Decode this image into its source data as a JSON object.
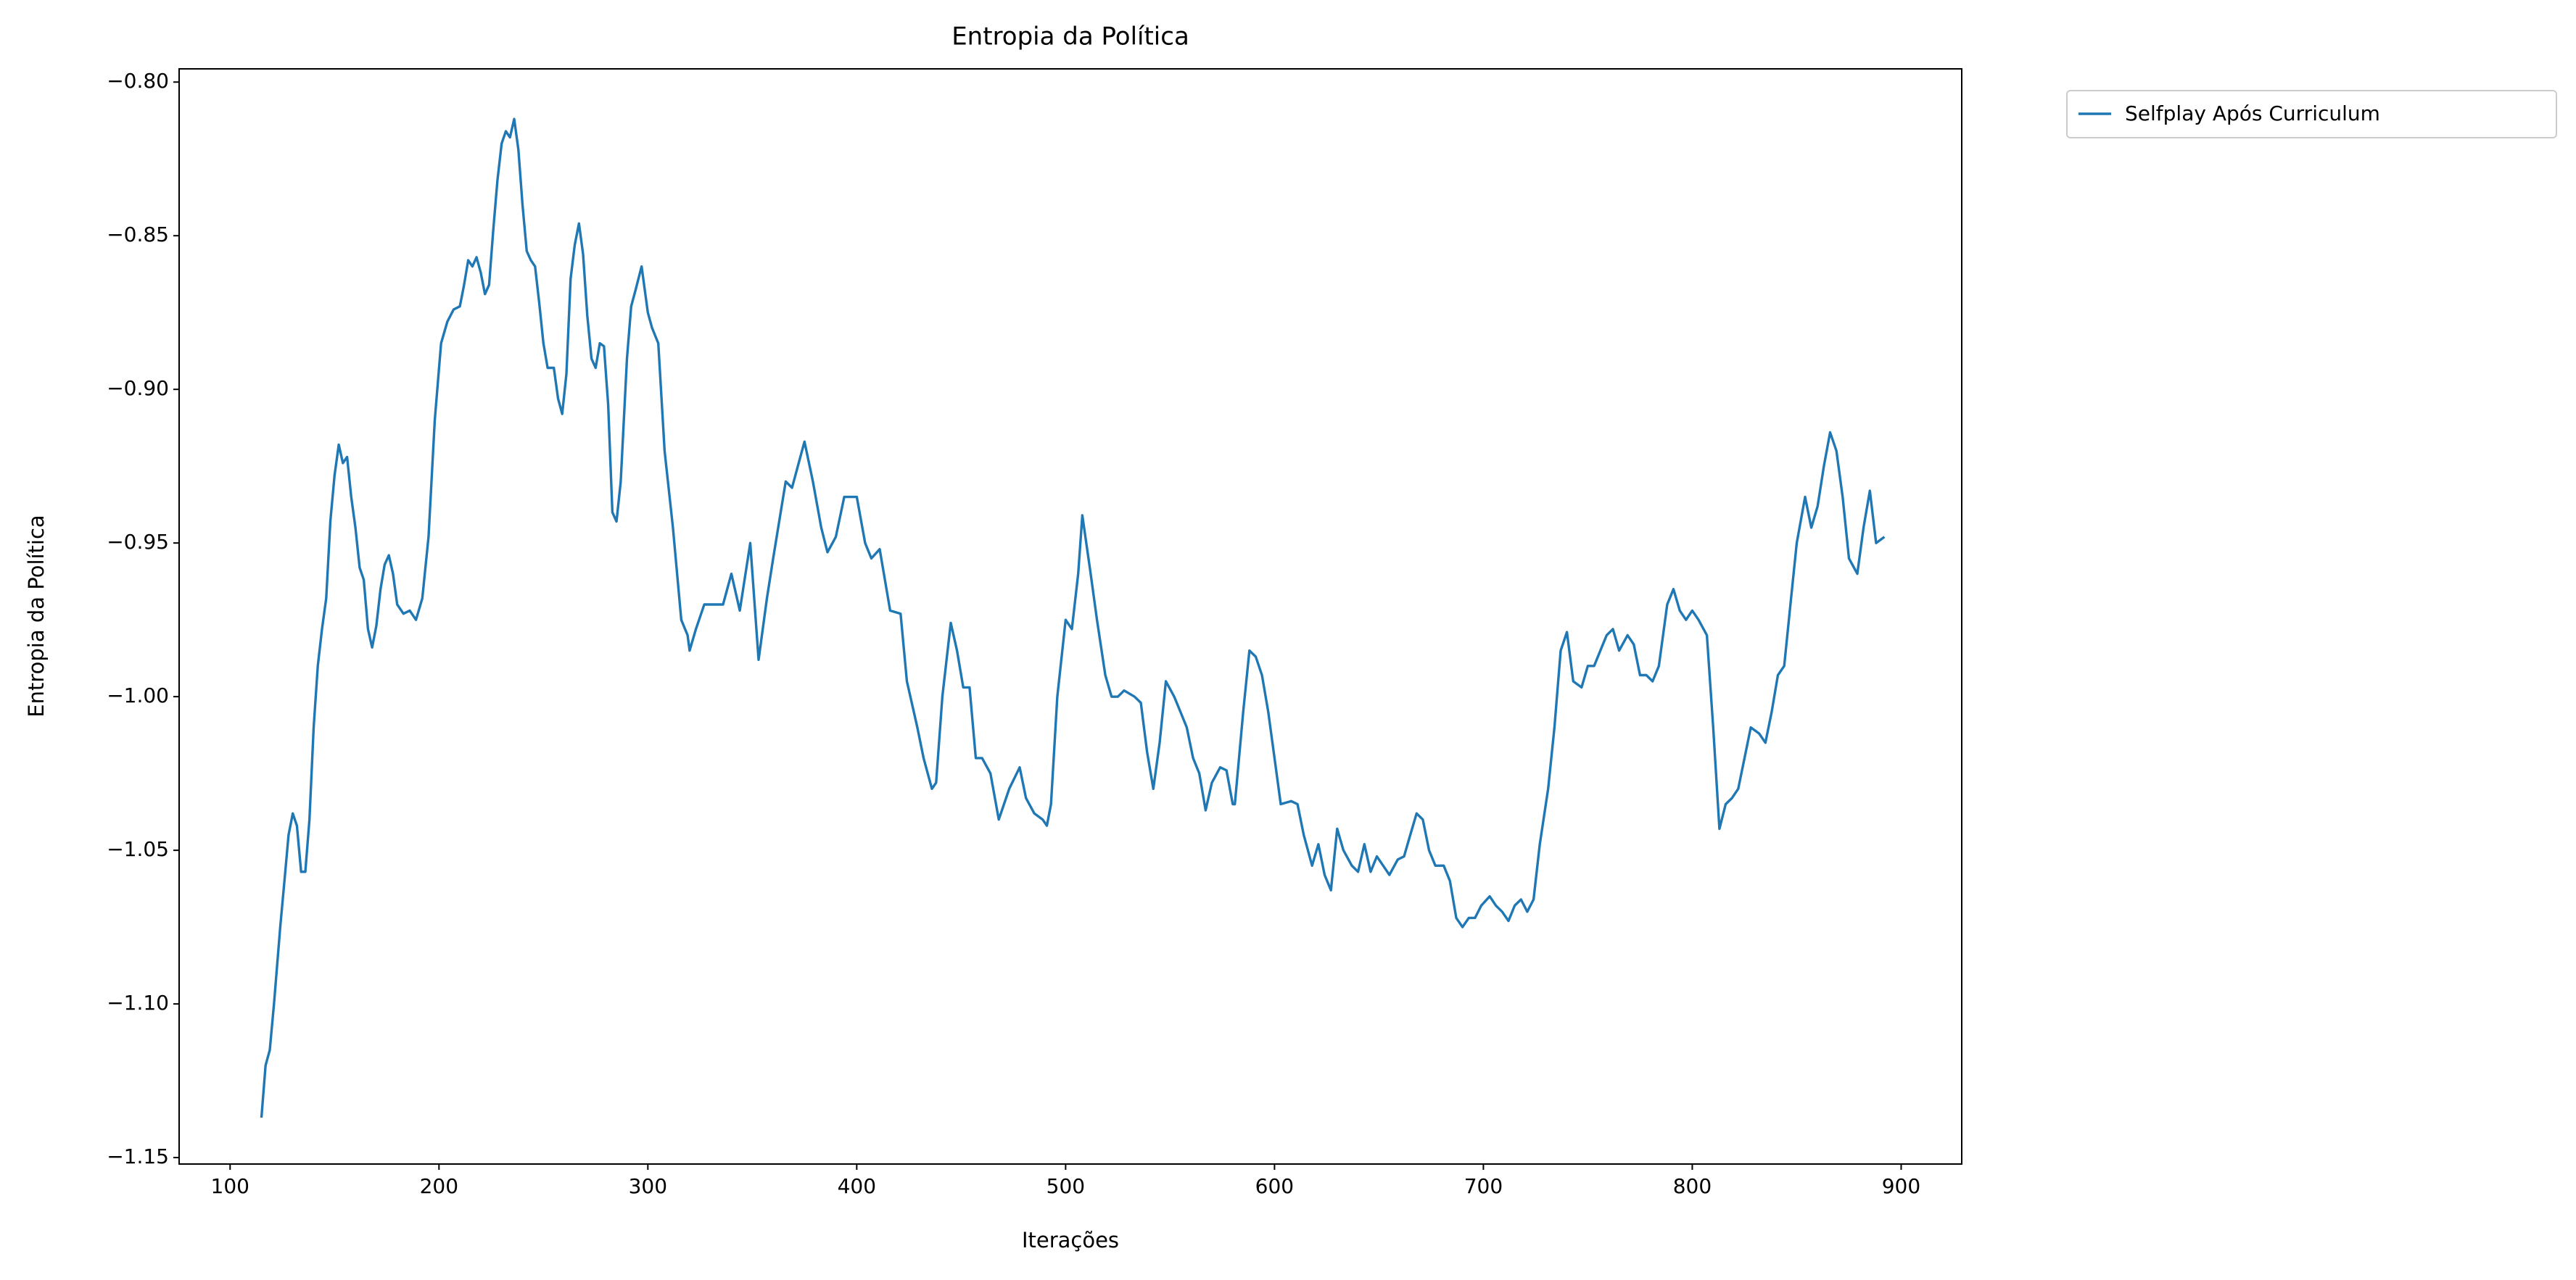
{
  "chart_data": {
    "type": "line",
    "title": "Entropia da Política",
    "x_label": "Iterações",
    "y_label": "Entropia da Política",
    "legend": "upper right outside",
    "xlim": [
      75.6,
      929
    ],
    "ylim": [
      -1.1521,
      -0.7957
    ],
    "xticks": [
      100,
      200,
      300,
      400,
      500,
      600,
      700,
      800,
      900
    ],
    "yticks": [
      {
        "value": -0.8,
        "label": "−0.80"
      },
      {
        "value": -0.85,
        "label": "−0.85"
      },
      {
        "value": -0.9,
        "label": "−0.90"
      },
      {
        "value": -0.95,
        "label": "−0.95"
      },
      {
        "value": -1.0,
        "label": "−1.00"
      },
      {
        "value": -1.05,
        "label": "−1.05"
      },
      {
        "value": -1.1,
        "label": "−1.10"
      },
      {
        "value": -1.15,
        "label": "−1.15"
      }
    ],
    "x": [
      115,
      117,
      119,
      121,
      124,
      126,
      128,
      130,
      132,
      134,
      136,
      138,
      140,
      142,
      144,
      146,
      148,
      150,
      152,
      154,
      156,
      158,
      160,
      162,
      164,
      166,
      168,
      170,
      172,
      174,
      176,
      178,
      180,
      183,
      186,
      189,
      192,
      195,
      198,
      201,
      204,
      207,
      210,
      212,
      214,
      216,
      218,
      220,
      222,
      224,
      226,
      228,
      230,
      232,
      234,
      236,
      238,
      240,
      242,
      244,
      246,
      248,
      250,
      252,
      255,
      257,
      259,
      261,
      263,
      265,
      267,
      269,
      271,
      273,
      275,
      277,
      279,
      281,
      283,
      285,
      287,
      290,
      292,
      294,
      297,
      300,
      302,
      305,
      308,
      312,
      316,
      319,
      320,
      323,
      327,
      332,
      336,
      340,
      344,
      349,
      353,
      357,
      360,
      366,
      369,
      375,
      379,
      383,
      386,
      390,
      394,
      400,
      404,
      407,
      411,
      416,
      421,
      424,
      429,
      432,
      436,
      438,
      441,
      445,
      448,
      451,
      454,
      457,
      460,
      464,
      468,
      473,
      478,
      481,
      485,
      489,
      491,
      493,
      496,
      500,
      503,
      506,
      508,
      512,
      515,
      519,
      522,
      525,
      528,
      533,
      536,
      539,
      542,
      545,
      548,
      552,
      555,
      558,
      561,
      564,
      567,
      570,
      574,
      577,
      580,
      581,
      585,
      588,
      591,
      594,
      597,
      600,
      603,
      608,
      611,
      614,
      618,
      621,
      624,
      627,
      630,
      633,
      637,
      640,
      643,
      646,
      649,
      652,
      655,
      659,
      662,
      665,
      668,
      671,
      674,
      677,
      681,
      684,
      687,
      690,
      693,
      696,
      699,
      703,
      706,
      709,
      712,
      715,
      718,
      721,
      724,
      727,
      731,
      734,
      737,
      740,
      743,
      747,
      750,
      753,
      756,
      759,
      762,
      765,
      769,
      772,
      775,
      778,
      781,
      784,
      788,
      791,
      794,
      797,
      800,
      803,
      807,
      810,
      813,
      816,
      819,
      822,
      825,
      828,
      832,
      835,
      838,
      841,
      844,
      847,
      850,
      854,
      857,
      860,
      863,
      866,
      869,
      872,
      875,
      879,
      882,
      885,
      888,
      892
    ],
    "series": [
      {
        "name": "Selfplay Após Curriculum",
        "color": "#1f77b4",
        "values": [
          -1.137,
          -1.12,
          -1.115,
          -1.1,
          -1.075,
          -1.06,
          -1.045,
          -1.038,
          -1.042,
          -1.057,
          -1.057,
          -1.04,
          -1.01,
          -0.99,
          -0.978,
          -0.968,
          -0.943,
          -0.928,
          -0.918,
          -0.924,
          -0.922,
          -0.935,
          -0.945,
          -0.958,
          -0.962,
          -0.978,
          -0.984,
          -0.977,
          -0.965,
          -0.957,
          -0.954,
          -0.96,
          -0.97,
          -0.973,
          -0.972,
          -0.975,
          -0.968,
          -0.948,
          -0.91,
          -0.885,
          -0.878,
          -0.874,
          -0.873,
          -0.866,
          -0.858,
          -0.86,
          -0.857,
          -0.862,
          -0.869,
          -0.866,
          -0.848,
          -0.832,
          -0.82,
          -0.816,
          -0.818,
          -0.812,
          -0.822,
          -0.84,
          -0.855,
          -0.858,
          -0.86,
          -0.872,
          -0.885,
          -0.893,
          -0.893,
          -0.903,
          -0.908,
          -0.895,
          -0.864,
          -0.853,
          -0.846,
          -0.856,
          -0.876,
          -0.89,
          -0.893,
          -0.885,
          -0.886,
          -0.905,
          -0.94,
          -0.943,
          -0.93,
          -0.89,
          -0.873,
          -0.868,
          -0.86,
          -0.875,
          -0.88,
          -0.885,
          -0.92,
          -0.945,
          -0.975,
          -0.98,
          -0.985,
          -0.978,
          -0.97,
          -0.97,
          -0.97,
          -0.96,
          -0.972,
          -0.95,
          -0.988,
          -0.968,
          -0.955,
          -0.93,
          -0.932,
          -0.917,
          -0.93,
          -0.945,
          -0.953,
          -0.948,
          -0.935,
          -0.935,
          -0.95,
          -0.955,
          -0.952,
          -0.972,
          -0.973,
          -0.995,
          -1.01,
          -1.02,
          -1.03,
          -1.028,
          -1.0,
          -0.976,
          -0.985,
          -0.997,
          -0.997,
          -1.02,
          -1.02,
          -1.025,
          -1.04,
          -1.03,
          -1.023,
          -1.033,
          -1.038,
          -1.04,
          -1.042,
          -1.035,
          -1.0,
          -0.975,
          -0.978,
          -0.96,
          -0.941,
          -0.96,
          -0.975,
          -0.993,
          -1.0,
          -1.0,
          -0.998,
          -1.0,
          -1.002,
          -1.018,
          -1.03,
          -1.015,
          -0.995,
          -1.0,
          -1.005,
          -1.01,
          -1.02,
          -1.025,
          -1.037,
          -1.028,
          -1.023,
          -1.024,
          -1.035,
          -1.035,
          -1.005,
          -0.985,
          -0.987,
          -0.993,
          -1.005,
          -1.02,
          -1.035,
          -1.034,
          -1.035,
          -1.045,
          -1.055,
          -1.048,
          -1.058,
          -1.063,
          -1.043,
          -1.05,
          -1.055,
          -1.057,
          -1.048,
          -1.057,
          -1.052,
          -1.055,
          -1.058,
          -1.053,
          -1.052,
          -1.045,
          -1.038,
          -1.04,
          -1.05,
          -1.055,
          -1.055,
          -1.06,
          -1.072,
          -1.075,
          -1.072,
          -1.072,
          -1.068,
          -1.065,
          -1.068,
          -1.07,
          -1.073,
          -1.068,
          -1.066,
          -1.07,
          -1.066,
          -1.048,
          -1.03,
          -1.01,
          -0.985,
          -0.979,
          -0.995,
          -0.997,
          -0.99,
          -0.99,
          -0.985,
          -0.98,
          -0.978,
          -0.985,
          -0.98,
          -0.983,
          -0.993,
          -0.993,
          -0.995,
          -0.99,
          -0.97,
          -0.965,
          -0.972,
          -0.975,
          -0.972,
          -0.975,
          -0.98,
          -1.01,
          -1.043,
          -1.035,
          -1.033,
          -1.03,
          -1.02,
          -1.01,
          -1.012,
          -1.015,
          -1.005,
          -0.993,
          -0.99,
          -0.97,
          -0.95,
          -0.935,
          -0.945,
          -0.938,
          -0.925,
          -0.914,
          -0.92,
          -0.935,
          -0.955,
          -0.96,
          -0.945,
          -0.933,
          -0.95,
          -0.948
        ]
      }
    ]
  }
}
